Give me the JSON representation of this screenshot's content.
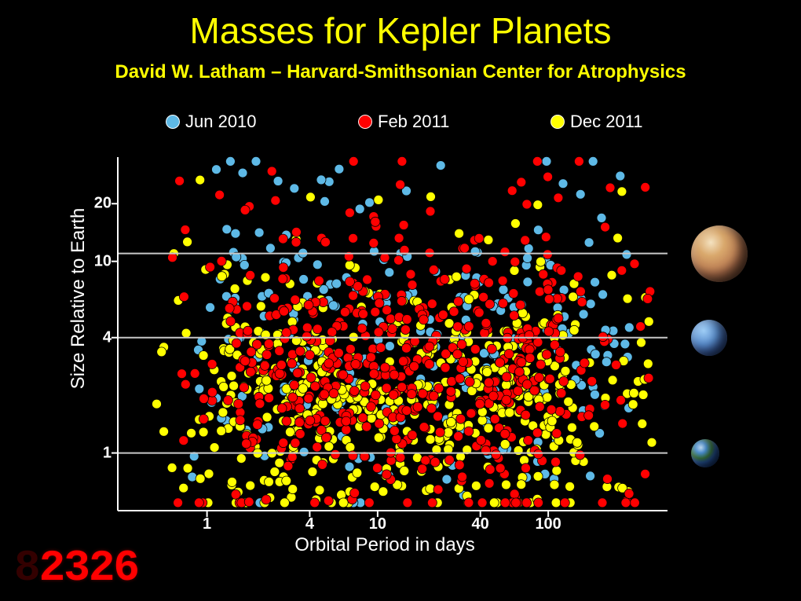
{
  "title": "Masses for Kepler Planets",
  "subtitle": "David W. Latham – Harvard-Smithsonian Center for Atrophysics",
  "legend": {
    "items": [
      {
        "label": "Jun 2010",
        "color": "#5eb9e6",
        "x": 10
      },
      {
        "label": "Feb 2011",
        "color": "#ff0000",
        "x": 255
      },
      {
        "label": "Dec 2011",
        "color": "#ffff00",
        "x": 500
      }
    ]
  },
  "chart": {
    "type": "scatter",
    "background_color": "#000000",
    "grid_color": "#c8c8c8",
    "axis_color": "#ffffff",
    "xlabel": "Orbital Period in days",
    "ylabel": "Size Relative to Earth",
    "xscale": "log",
    "yscale": "log",
    "xlim": [
      0.3,
      500
    ],
    "ylim": [
      0.5,
      35
    ],
    "xticks": [
      1,
      4,
      10,
      40,
      100
    ],
    "yticks": [
      1,
      4,
      10,
      20
    ],
    "ref_lines_y": [
      1,
      4,
      11
    ],
    "marker_radius": 6,
    "marker_stroke": "#000000",
    "tick_fontsize": 20,
    "label_fontsize": 24,
    "title_fontsize": 46,
    "n_points_per_series": [
      250,
      550,
      520
    ],
    "series": [
      {
        "key": "jun2010",
        "color": "#5eb9e6"
      },
      {
        "key": "feb2011",
        "color": "#ff0000"
      },
      {
        "key": "dec2011",
        "color": "#ffff00"
      }
    ],
    "seed": 20111201
  },
  "ref_planets": [
    {
      "name": "jupiter",
      "size": 72,
      "y_value": 11,
      "gradient": "radial-gradient(circle at 35% 30%, #f4e2c0 0%, #d9a86c 25%, #c4895a 45%, #a66a48 60%, #8c5a3e 80%, #5a3624 100%)"
    },
    {
      "name": "neptune",
      "size": 46,
      "y_value": 4,
      "gradient": "radial-gradient(circle at 35% 30%, #9ecdf5 0%, #5b8fd0 40%, #3e66b0 65%, #243d78 100%)"
    },
    {
      "name": "earth",
      "size": 36,
      "y_value": 1,
      "gradient": "radial-gradient(circle at 35% 30%, #b9d7f0 0%, #4a8fd0 20%, #3a7840 40%, #2a5da8 55%, #1a4080 75%, #0a1838 100%)"
    }
  ],
  "counter": {
    "value": "2326",
    "color": "#ff0000",
    "font": "seven-segment"
  }
}
